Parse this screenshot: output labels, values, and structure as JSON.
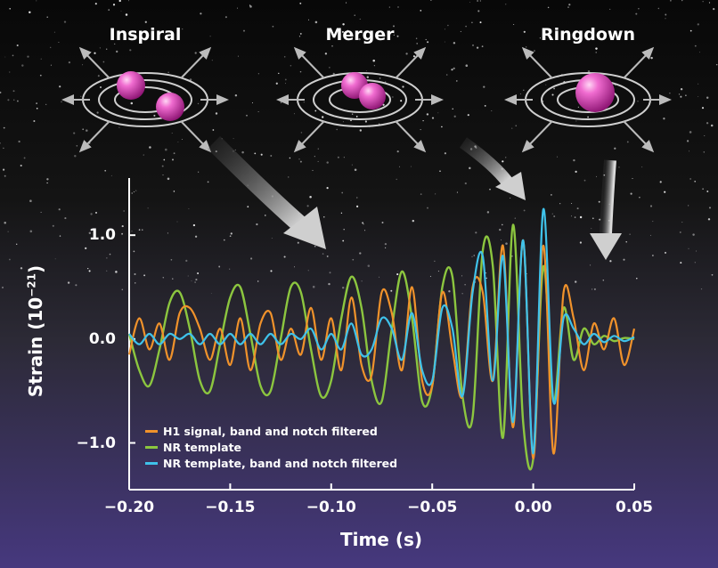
{
  "phases": {
    "inspiral": "Inspiral",
    "merger": "Merger",
    "ringdown": "Ringdown"
  },
  "colors": {
    "h1": "#f0922b",
    "nr": "#8cc63f",
    "nr_filtered": "#3fc2ea",
    "sphere": "#e040b8",
    "sky_top": "#0a0a0a",
    "sky_bottom": "#4a3a8a"
  },
  "chart_data": {
    "type": "line",
    "xlabel": "Time (s)",
    "ylabel": "Strain (10",
    "ylabel_exp": "−21",
    "ylabel_close": ")",
    "xlim": [
      -0.2,
      0.05
    ],
    "ylim": [
      -1.45,
      1.55
    ],
    "x_ticks": [
      -0.2,
      -0.15,
      -0.1,
      -0.05,
      0.0,
      0.05
    ],
    "x_tick_labels": [
      "−0.20",
      "−0.15",
      "−0.10",
      "−0.05",
      "0.00",
      "0.05"
    ],
    "y_ticks": [
      1.0,
      0.0,
      -1.0
    ],
    "y_tick_labels": [
      "1.0",
      "0.0",
      "−1.0"
    ],
    "legend_position": "bottom-left",
    "series": [
      {
        "name": "H1 signal, band and notch filtered",
        "color": "#f0922b",
        "x": [
          -0.2,
          -0.195,
          -0.19,
          -0.185,
          -0.18,
          -0.175,
          -0.17,
          -0.165,
          -0.16,
          -0.155,
          -0.15,
          -0.145,
          -0.14,
          -0.135,
          -0.13,
          -0.125,
          -0.12,
          -0.115,
          -0.11,
          -0.105,
          -0.1,
          -0.095,
          -0.09,
          -0.085,
          -0.08,
          -0.075,
          -0.07,
          -0.065,
          -0.06,
          -0.055,
          -0.05,
          -0.045,
          -0.04,
          -0.035,
          -0.03,
          -0.025,
          -0.02,
          -0.015,
          -0.01,
          -0.005,
          0.0,
          0.005,
          0.01,
          0.015,
          0.02,
          0.025,
          0.03,
          0.035,
          0.04,
          0.045,
          0.05
        ],
        "values": [
          -0.15,
          0.2,
          -0.1,
          0.15,
          -0.2,
          0.25,
          0.3,
          0.1,
          -0.2,
          0.1,
          -0.25,
          0.2,
          -0.3,
          0.15,
          0.25,
          -0.2,
          0.1,
          -0.15,
          0.3,
          -0.2,
          0.2,
          -0.3,
          0.4,
          -0.25,
          -0.35,
          0.45,
          0.25,
          -0.3,
          0.5,
          -0.4,
          -0.45,
          0.45,
          -0.1,
          -0.55,
          0.5,
          0.45,
          -0.4,
          0.9,
          -0.85,
          0.95,
          -1.15,
          0.9,
          -1.1,
          0.45,
          0.2,
          -0.3,
          0.15,
          -0.1,
          0.2,
          -0.25,
          0.1
        ]
      },
      {
        "name": "NR template",
        "color": "#8cc63f",
        "x": [
          -0.2,
          -0.195,
          -0.19,
          -0.185,
          -0.18,
          -0.175,
          -0.17,
          -0.165,
          -0.16,
          -0.155,
          -0.15,
          -0.145,
          -0.14,
          -0.135,
          -0.13,
          -0.125,
          -0.12,
          -0.115,
          -0.11,
          -0.105,
          -0.1,
          -0.095,
          -0.09,
          -0.085,
          -0.08,
          -0.075,
          -0.07,
          -0.065,
          -0.06,
          -0.055,
          -0.05,
          -0.045,
          -0.04,
          -0.035,
          -0.03,
          -0.025,
          -0.02,
          -0.015,
          -0.01,
          -0.005,
          0.0,
          0.005,
          0.01,
          0.015,
          0.02,
          0.025,
          0.03,
          0.035,
          0.04,
          0.045,
          0.05
        ],
        "values": [
          0.05,
          -0.3,
          -0.45,
          -0.1,
          0.35,
          0.45,
          0.1,
          -0.4,
          -0.5,
          -0.05,
          0.4,
          0.5,
          0.05,
          -0.45,
          -0.5,
          0.0,
          0.5,
          0.45,
          -0.1,
          -0.55,
          -0.4,
          0.2,
          0.6,
          0.3,
          -0.4,
          -0.6,
          0.1,
          0.65,
          0.2,
          -0.6,
          -0.45,
          0.5,
          0.6,
          -0.55,
          -0.75,
          0.85,
          0.7,
          -0.95,
          1.1,
          -0.8,
          -1.15,
          0.7,
          -0.6,
          0.3,
          -0.2,
          0.1,
          -0.05,
          0.03,
          -0.02,
          0.01,
          0.0
        ]
      },
      {
        "name": "NR template, band and notch filtered",
        "color": "#3fc2ea",
        "x": [
          -0.2,
          -0.195,
          -0.19,
          -0.185,
          -0.18,
          -0.175,
          -0.17,
          -0.165,
          -0.16,
          -0.155,
          -0.15,
          -0.145,
          -0.14,
          -0.135,
          -0.13,
          -0.125,
          -0.12,
          -0.115,
          -0.11,
          -0.105,
          -0.1,
          -0.095,
          -0.09,
          -0.085,
          -0.08,
          -0.075,
          -0.07,
          -0.065,
          -0.06,
          -0.055,
          -0.05,
          -0.045,
          -0.04,
          -0.035,
          -0.03,
          -0.025,
          -0.02,
          -0.015,
          -0.01,
          -0.005,
          0.0,
          0.005,
          0.01,
          0.015,
          0.02,
          0.025,
          0.03,
          0.035,
          0.04,
          0.045,
          0.05
        ],
        "values": [
          0.05,
          -0.05,
          0.05,
          -0.05,
          0.05,
          0.0,
          0.05,
          -0.05,
          0.05,
          -0.05,
          0.05,
          -0.05,
          0.05,
          -0.05,
          0.05,
          -0.05,
          0.05,
          0.0,
          0.1,
          -0.1,
          0.05,
          -0.1,
          0.15,
          -0.15,
          -0.1,
          0.2,
          0.1,
          -0.2,
          0.25,
          -0.3,
          -0.4,
          0.3,
          0.1,
          -0.55,
          0.45,
          0.8,
          -0.4,
          0.8,
          -0.8,
          0.95,
          -1.1,
          1.25,
          -0.6,
          0.2,
          0.1,
          -0.05,
          0.05,
          -0.03,
          0.03,
          -0.02,
          0.02
        ]
      }
    ]
  }
}
